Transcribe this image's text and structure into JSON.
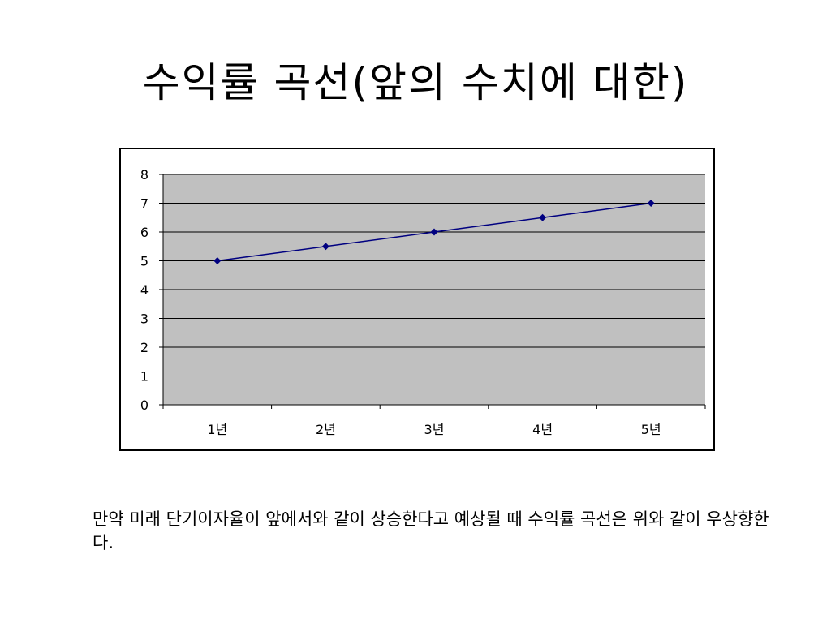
{
  "slide": {
    "title": "수익률 곡선(앞의 수치에 대한)",
    "body_text": "만약 미래 단기이자율이 앞에서와 같이 상승한다고 예상될 때 수익률 곡선은 위와 같이 우상향한다."
  },
  "colors": {
    "plot_background": "#c0c0c0",
    "gridline": "#000000",
    "series_line": "#000080"
  },
  "chart_data": {
    "type": "line",
    "title": "",
    "xlabel": "",
    "ylabel": "",
    "categories": [
      "1년",
      "2년",
      "3년",
      "4년",
      "5년"
    ],
    "series": [
      {
        "values": [
          5,
          5.5,
          6,
          6.5,
          7
        ]
      }
    ],
    "ylim": [
      0,
      8
    ],
    "yticks": [
      0,
      1,
      2,
      3,
      4,
      5,
      6,
      7,
      8
    ],
    "grid": true,
    "legend": "none",
    "marker": "diamond"
  }
}
